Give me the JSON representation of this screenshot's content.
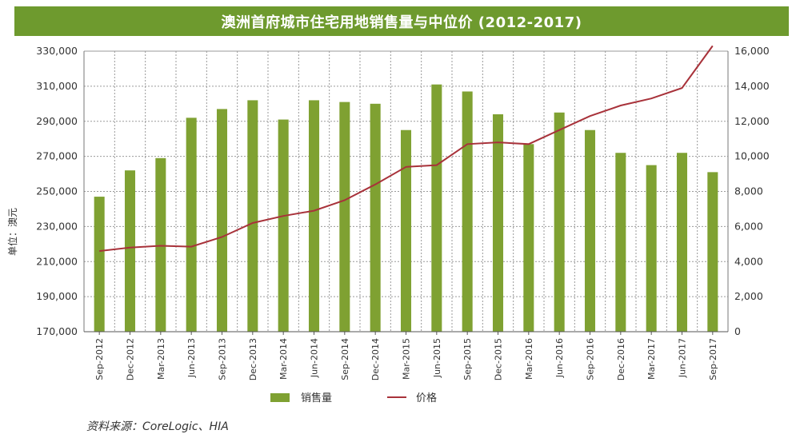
{
  "title": "澳洲首府城市住宅用地销售量与中位价 (2012-2017)",
  "source": "资料来源：CoreLogic、HIA",
  "colors": {
    "title_bg": "#6e9a2e",
    "bar": "#7fa132",
    "line": "#a8323a",
    "grid": "#9a9a9a"
  },
  "chart_data": {
    "type": "bar+line",
    "title": "澳洲首府城市住宅用地销售量与中位价 (2012-2017)",
    "ylabel_left": "单位：澳元",
    "ylim_left": [
      170000,
      330000
    ],
    "yticks_left": [
      "170,000",
      "190,000",
      "210,000",
      "230,000",
      "250,000",
      "270,000",
      "290,000",
      "310,000",
      "330,000"
    ],
    "ylim_right": [
      0,
      16000
    ],
    "yticks_right": [
      "0",
      "2,000",
      "4,000",
      "6,000",
      "8,000",
      "10,000",
      "12,000",
      "14,000",
      "16,000"
    ],
    "grid": true,
    "legend_position": "bottom",
    "categories": [
      "Sep-2012",
      "Dec-2012",
      "Mar-2013",
      "Jun-2013",
      "Sep-2013",
      "Dec-2013",
      "Mar-2014",
      "Jun-2014",
      "Sep-2014",
      "Dec-2014",
      "Mar-2015",
      "Jun-2015",
      "Sep-2015",
      "Dec-2015",
      "Mar-2016",
      "Jun-2016",
      "Sep-2016",
      "Dec-2016",
      "Mar-2017",
      "Jun-2017",
      "Sep-2017"
    ],
    "series": [
      {
        "name": "销售量",
        "type": "bar",
        "axis": "right",
        "values": [
          7700,
          9200,
          9900,
          12200,
          12700,
          13200,
          12100,
          13200,
          13100,
          13000,
          11500,
          14100,
          13700,
          12400,
          10700,
          12500,
          11500,
          10200,
          9500,
          10200,
          9100
        ]
      },
      {
        "name": "价格",
        "type": "line",
        "axis": "left",
        "values": [
          216000,
          218000,
          219000,
          218500,
          224000,
          232000,
          236000,
          239000,
          245000,
          254000,
          264000,
          265000,
          277000,
          278000,
          277000,
          285000,
          293000,
          299000,
          303000,
          309000,
          333000
        ]
      }
    ]
  }
}
